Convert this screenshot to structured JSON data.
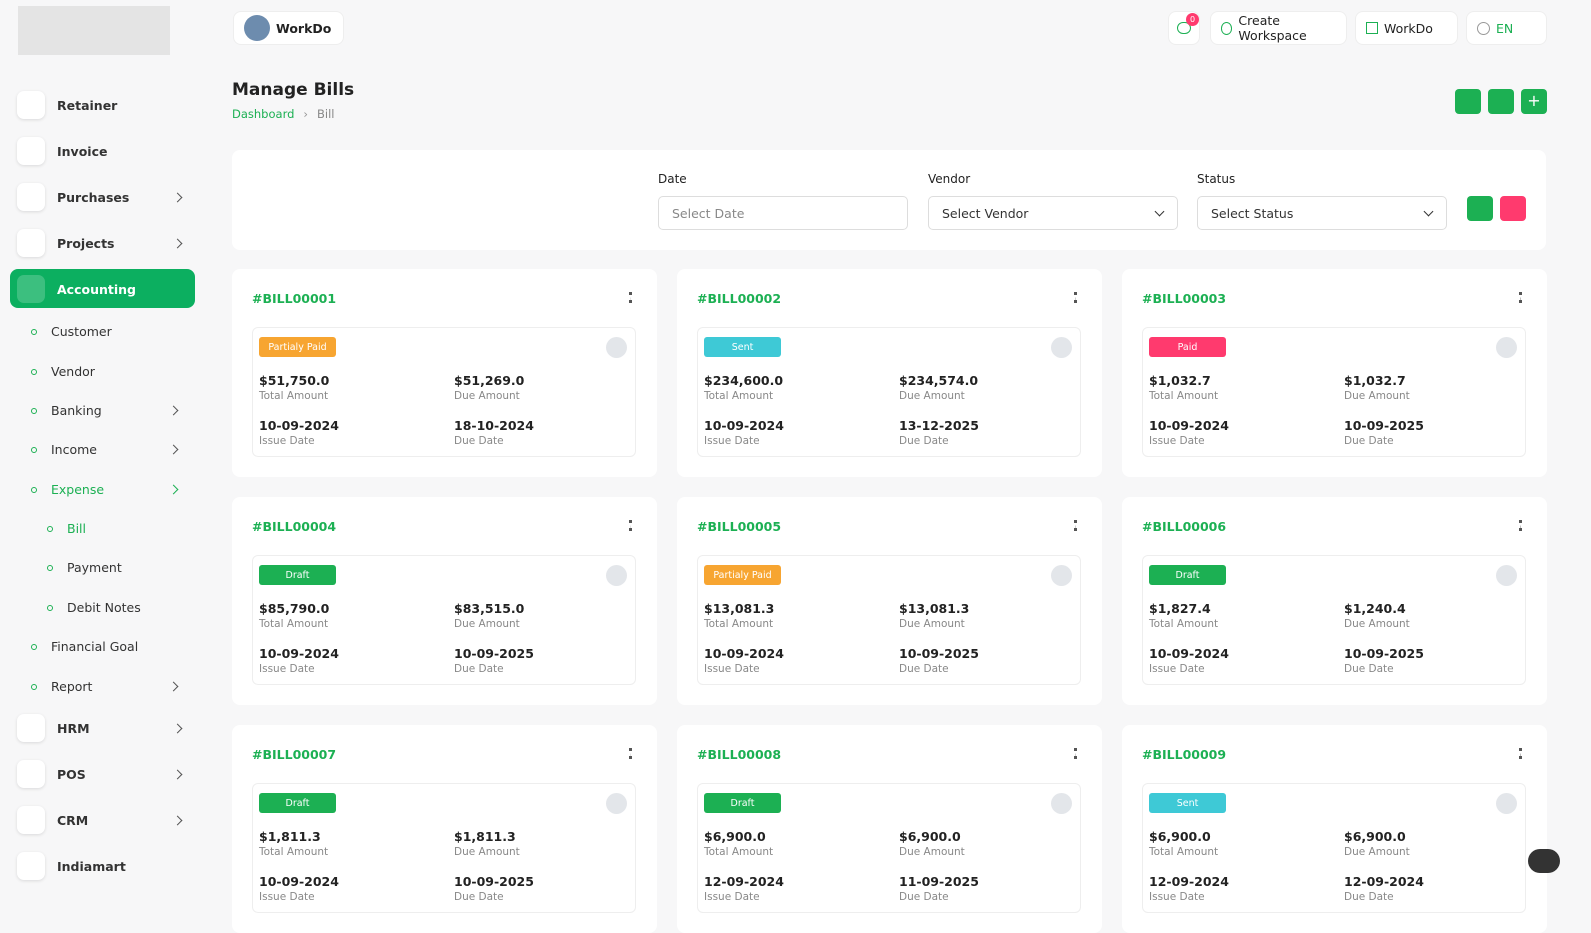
{
  "header": {
    "workspace": "WorkDo",
    "notifications": "0",
    "create_workspace": "Create Workspace",
    "workspace_menu": "WorkDo",
    "language": "EN"
  },
  "sidebar": {
    "items": [
      "Retainer",
      "Invoice",
      "Purchases",
      "Projects",
      "Accounting"
    ],
    "accounting": [
      "Customer",
      "Vendor",
      "Banking",
      "Income",
      "Expense"
    ],
    "expense": [
      "Bill",
      "Payment",
      "Debit Notes"
    ],
    "accounting_more": [
      "Financial Goal",
      "Report"
    ],
    "more": [
      "HRM",
      "POS",
      "CRM",
      "Indiamart"
    ]
  },
  "page": {
    "title": "Manage Bills",
    "breadcrumb": [
      "Dashboard",
      "Bill"
    ]
  },
  "filters": [
    {
      "label": "Date",
      "placeholder": "Select Date"
    },
    {
      "label": "Vendor",
      "placeholder": "Select Vendor"
    },
    {
      "label": "Status",
      "placeholder": "Select Status"
    }
  ],
  "card_labels": {
    "total": "Total Amount",
    "due_amount": "Due Amount",
    "issue": "Issue Date",
    "due": "Due Date"
  },
  "bills": [
    {
      "id": "#BILL00001",
      "status": "Partialy Paid",
      "status_color": "#f7a531",
      "total": "$51,750.0",
      "due_amount": "$51,269.0",
      "issue_date": "10-09-2024",
      "due_date": "18-10-2024"
    },
    {
      "id": "#BILL00002",
      "status": "Sent",
      "status_color": "#3ec9d6",
      "total": "$234,600.0",
      "due_amount": "$234,574.0",
      "issue_date": "10-09-2024",
      "due_date": "13-12-2025"
    },
    {
      "id": "#BILL00003",
      "status": "Paid",
      "status_color": "#ff3a6e",
      "total": "$1,032.7",
      "due_amount": "$1,032.7",
      "issue_date": "10-09-2024",
      "due_date": "10-09-2025"
    },
    {
      "id": "#BILL00004",
      "status": "Draft",
      "status_color": "#1cb053",
      "total": "$85,790.0",
      "due_amount": "$83,515.0",
      "issue_date": "10-09-2024",
      "due_date": "10-09-2025"
    },
    {
      "id": "#BILL00005",
      "status": "Partialy Paid",
      "status_color": "#f7a531",
      "total": "$13,081.3",
      "due_amount": "$13,081.3",
      "issue_date": "10-09-2024",
      "due_date": "10-09-2025"
    },
    {
      "id": "#BILL00006",
      "status": "Draft",
      "status_color": "#1cb053",
      "total": "$1,827.4",
      "due_amount": "$1,240.4",
      "issue_date": "10-09-2024",
      "due_date": "10-09-2025"
    },
    {
      "id": "#BILL00007",
      "status": "Draft",
      "status_color": "#1cb053",
      "total": "$1,811.3",
      "due_amount": "$1,811.3",
      "issue_date": "10-09-2024",
      "due_date": "10-09-2025"
    },
    {
      "id": "#BILL00008",
      "status": "Draft",
      "status_color": "#1cb053",
      "total": "$6,900.0",
      "due_amount": "$6,900.0",
      "issue_date": "12-09-2024",
      "due_date": "11-09-2025"
    },
    {
      "id": "#BILL00009",
      "status": "Sent",
      "status_color": "#3ec9d6",
      "total": "$6,900.0",
      "due_amount": "$6,900.0",
      "issue_date": "12-09-2024",
      "due_date": "12-09-2024"
    }
  ]
}
